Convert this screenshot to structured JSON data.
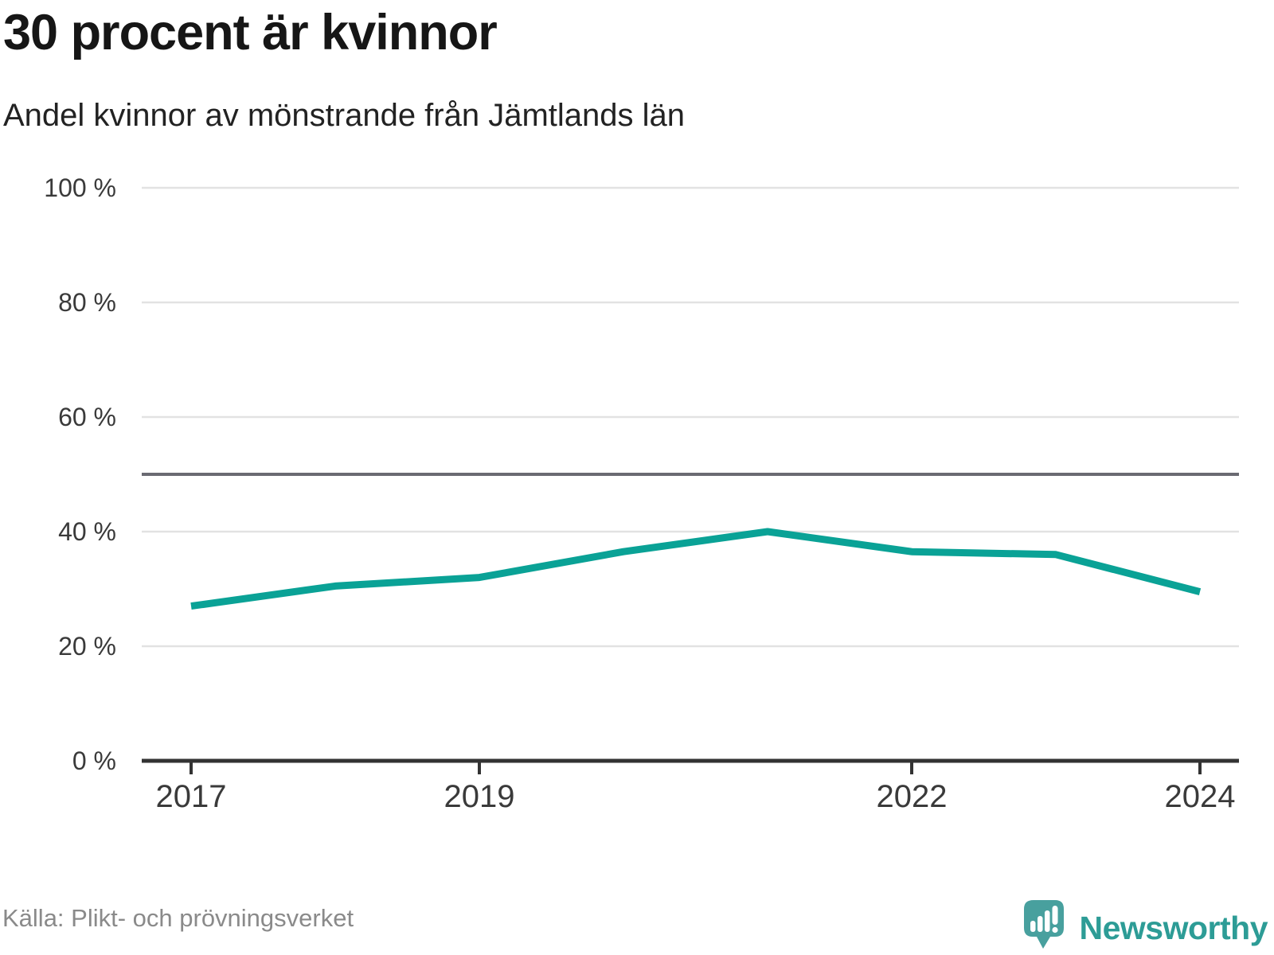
{
  "header": {
    "title": "30 procent är kvinnor",
    "subtitle": "Andel kvinnor av mönstrande från Jämtlands län"
  },
  "footer": {
    "source": "Källa: Plikt- och prövningsverket",
    "brand": "Newsworthy"
  },
  "icons": {
    "logo": "newsworthy-bubble-bar-chart-icon"
  },
  "colors": {
    "line": "#0aa296",
    "reference_line": "#6a6a72",
    "grid": "#e2e2e2",
    "axis": "#333333",
    "tick_text": "#3a3a3a",
    "muted_text": "#8a8a8a",
    "brand": "#2d9c96",
    "logo_bubble": "#48a09e"
  },
  "chart_data": {
    "type": "line",
    "title": "30 procent är kvinnor",
    "subtitle": "Andel kvinnor av mönstrande från Jämtlands län",
    "x": [
      2017,
      2018,
      2019,
      2020,
      2021,
      2022,
      2023,
      2024
    ],
    "series": [
      {
        "name": "Andel kvinnor av mönstrande från Jämtlands län",
        "values": [
          27,
          30.5,
          32,
          36.5,
          40,
          36.5,
          36,
          29.5
        ]
      }
    ],
    "ylabel": "",
    "xlabel": "",
    "ylim": [
      0,
      100
    ],
    "yticks": [
      {
        "value": 0,
        "label": "0 %"
      },
      {
        "value": 20,
        "label": "20 %"
      },
      {
        "value": 40,
        "label": "40 %"
      },
      {
        "value": 60,
        "label": "60 %"
      },
      {
        "value": 80,
        "label": "80 %"
      },
      {
        "value": 100,
        "label": "100 %"
      }
    ],
    "xticks": [
      {
        "value": 2017,
        "label": "2017"
      },
      {
        "value": 2019,
        "label": "2019"
      },
      {
        "value": 2022,
        "label": "2022"
      },
      {
        "value": 2024,
        "label": "2024"
      }
    ],
    "reference_line": 50,
    "grid": true,
    "legend": "none"
  }
}
